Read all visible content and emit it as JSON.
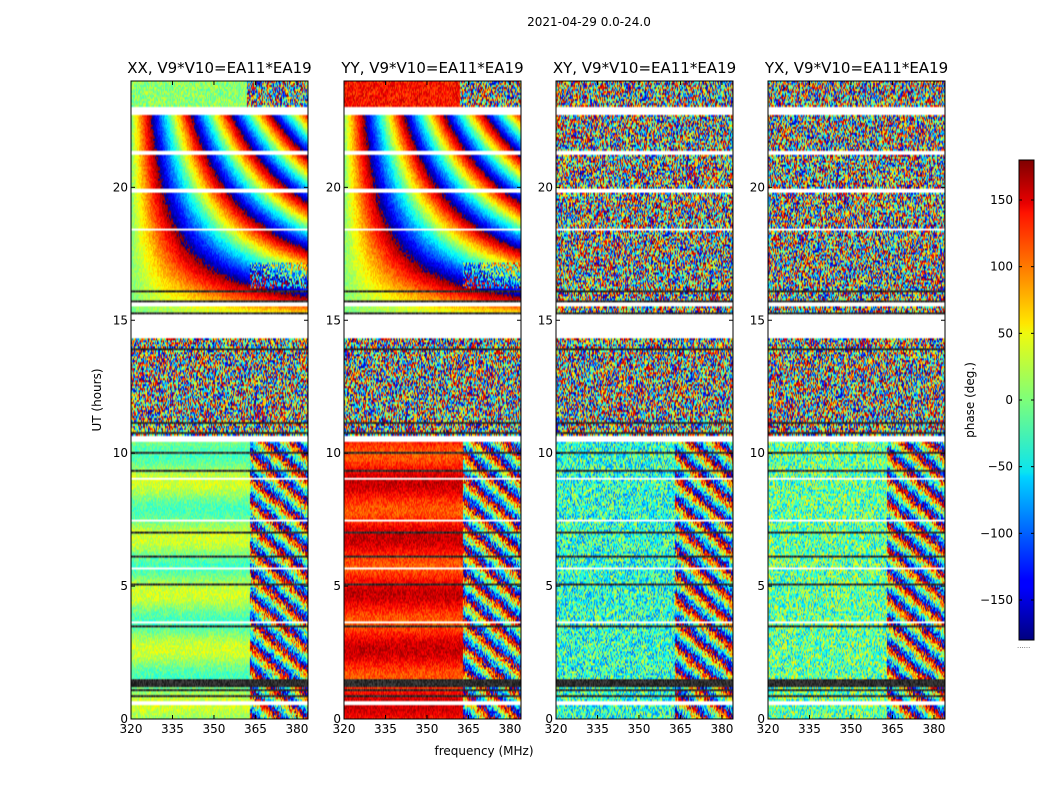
{
  "chart_data": {
    "type": "heatmap",
    "suptitle": "2021-04-29 0.0-24.0",
    "xlabel": "frequency (MHz)",
    "ylabel": "UT (hours)",
    "xlim": [
      320,
      384
    ],
    "ylim": [
      0,
      24
    ],
    "x_ticks": [
      "320",
      "335",
      "350",
      "365",
      "380"
    ],
    "y_ticks": [
      "0",
      "5",
      "10",
      "15",
      "20"
    ],
    "panels": [
      {
        "title": "XX, V9*V10=EA11*EA19",
        "pol": "XX",
        "low_phase": 5
      },
      {
        "title": "YY, V9*V10=EA11*EA19",
        "pol": "YY",
        "low_phase": 130
      },
      {
        "title": "XY, V9*V10=EA11*EA19",
        "pol": "XY",
        "low_phase": -30
      },
      {
        "title": "YX, V9*V10=EA11*EA19",
        "pol": "YX",
        "low_phase": -10
      }
    ],
    "colorbar": {
      "label": "phase (deg.)",
      "range": [
        -180,
        180
      ],
      "ticks": [
        "150",
        "100",
        "50",
        "0",
        "−50",
        "−100",
        "−150"
      ],
      "tick_values": [
        150,
        100,
        50,
        0,
        -50,
        -100,
        -150
      ],
      "colormap": "jet"
    },
    "flagged_ut_bands": [
      [
        14.35,
        15.2
      ],
      [
        10.4,
        10.65
      ],
      [
        22.75,
        23.0
      ],
      [
        21.2,
        21.35
      ],
      [
        19.8,
        19.92
      ],
      [
        18.35,
        18.45
      ],
      [
        15.55,
        15.65
      ],
      [
        9.0,
        9.08
      ],
      [
        7.4,
        7.48
      ],
      [
        5.6,
        5.68
      ],
      [
        3.6,
        3.7
      ],
      [
        0.55,
        0.65
      ]
    ],
    "dark_ut_bands": [
      [
        1.2,
        1.5
      ],
      [
        1.05,
        1.12
      ],
      [
        0.8,
        0.87
      ],
      [
        3.45,
        3.5
      ],
      [
        5.05,
        5.1
      ],
      [
        5.3,
        5.35
      ],
      [
        6.1,
        6.15
      ],
      [
        7.0,
        7.05
      ],
      [
        8.0,
        8.04
      ],
      [
        9.3,
        9.35
      ],
      [
        10.0,
        10.04
      ],
      [
        10.7,
        10.8
      ],
      [
        11.1,
        11.15
      ],
      [
        12.2,
        12.25
      ],
      [
        13.1,
        13.15
      ],
      [
        13.9,
        13.95
      ],
      [
        14.3,
        14.35
      ],
      [
        15.2,
        15.3
      ],
      [
        15.7,
        15.75
      ],
      [
        16.05,
        16.1
      ]
    ],
    "rfi_regions": [
      [
        363,
        384,
        0,
        10.4
      ],
      [
        363,
        384,
        16.2,
        17.2
      ]
    ],
    "annotations": [
      "......"
    ]
  }
}
